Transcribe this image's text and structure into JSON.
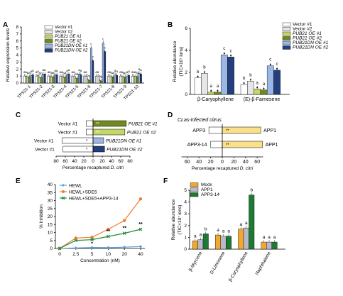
{
  "chart_data": [
    {
      "panel": "A",
      "type": "bar",
      "ylabel": "Relative expression levels",
      "ylim": [
        0,
        8
      ],
      "yticks": [
        0,
        1,
        2,
        3,
        4,
        5,
        6,
        7,
        8
      ],
      "categories": [
        "TPS21-1",
        "TPS21-2",
        "TPS21-3",
        "TPS21-4",
        "TPS21-5",
        "TPS21-6",
        "TPS21-7",
        "TPS21-8",
        "TPS21-9",
        "TPS21-10"
      ],
      "series": [
        {
          "name": "Vector #1",
          "color": "#ffffff",
          "values": [
            1.0,
            1.0,
            1.0,
            1.0,
            1.0,
            1.0,
            1.0,
            1.0,
            1.0,
            1.0
          ]
        },
        {
          "name": "Vector #2",
          "color": "#e6e6e6",
          "values": [
            1.0,
            1.1,
            1.0,
            1.0,
            1.0,
            1.0,
            1.0,
            1.0,
            1.0,
            1.0
          ]
        },
        {
          "name": "PUB21 OE #1",
          "color": "#c4d86a",
          "values": [
            0.9,
            0.8,
            0.9,
            0.8,
            0.7,
            0.5,
            0.4,
            0.9,
            0.9,
            1.0
          ]
        },
        {
          "name": "PUB21 OE #2",
          "color": "#6f8b1e",
          "values": [
            0.9,
            0.8,
            0.9,
            0.9,
            0.7,
            0.4,
            0.3,
            0.9,
            0.8,
            0.9
          ]
        },
        {
          "name": "PUB21DN OE #1",
          "color": "#9ab7e6",
          "values": [
            1.1,
            1.3,
            1.2,
            1.2,
            1.3,
            5.0,
            5.7,
            1.2,
            1.0,
            1.4
          ]
        },
        {
          "name": "PUB21DN OE #2",
          "color": "#243f7e",
          "values": [
            1.2,
            1.3,
            1.2,
            1.3,
            1.2,
            3.2,
            4.5,
            1.1,
            1.1,
            1.3
          ]
        }
      ],
      "annotations": [
        "a",
        "b",
        "c"
      ]
    },
    {
      "panel": "B",
      "type": "bar",
      "ylabel": "Relative abundance",
      "ylabel_unit": "(TIC×10⁷ ions)",
      "ylim": [
        0,
        6
      ],
      "yticks": [
        0,
        2,
        4,
        6
      ],
      "categories": [
        "β-Caryophyllene",
        "(E)-β-Farnesene"
      ],
      "series": [
        {
          "name": "Vector #1",
          "values": [
            1.5,
            0.9
          ]
        },
        {
          "name": "Vector #2",
          "values": [
            1.9,
            1.2
          ]
        },
        {
          "name": "PUB21 OE #1",
          "values": [
            0.2,
            0.5
          ]
        },
        {
          "name": "PUB21 OE #2",
          "values": [
            0.2,
            0.4
          ]
        },
        {
          "name": "PUB21DN OE #1",
          "values": [
            3.6,
            2.6
          ]
        },
        {
          "name": "PUB21DN OE #2",
          "values": [
            3.4,
            2.2
          ]
        }
      ],
      "letters": [
        [
          "b",
          "b",
          "a",
          "a",
          "c",
          "c"
        ],
        [
          "b",
          "b",
          "a",
          "a",
          "c",
          "c"
        ]
      ]
    },
    {
      "panel": "C",
      "type": "bar",
      "xlabel": "Percentage recaptured D. citri",
      "xlim": [
        -80,
        80
      ],
      "xticks": [
        80,
        60,
        40,
        20,
        0,
        20,
        40,
        60,
        80
      ],
      "rows": [
        {
          "left": "Vector #1",
          "right": "PUB21 OE #1",
          "left_value": 15,
          "right_value": 72,
          "sig": "**",
          "color": "#6f8b1e"
        },
        {
          "left": "Vector #1",
          "right": "PUB21 OE #2",
          "left_value": 15,
          "right_value": 69,
          "sig": "**",
          "color": "#c4d86a"
        },
        {
          "left": "Vector #1",
          "right": "PUB21DN OE #1",
          "left_value": 67,
          "right_value": 23,
          "sig": "*",
          "color": "#9ab7e6"
        },
        {
          "left": "Vector #1",
          "right": "PUB21DN OE #2",
          "left_value": 65,
          "right_value": 25,
          "sig": "*",
          "color": "#243f7e"
        }
      ]
    },
    {
      "panel": "D",
      "type": "bar",
      "title": "CLas-infected citrus",
      "xlabel": "Percentage recaptured D. citri",
      "xlim": [
        -80,
        80
      ],
      "xticks": [
        60,
        40,
        20,
        0,
        20,
        40,
        60
      ],
      "rows": [
        {
          "left": "APP3",
          "right": "APP1",
          "left_value": 23,
          "right_value": 66,
          "sig": "**"
        },
        {
          "left": "APP3-14",
          "right": "APP1",
          "left_value": 20,
          "right_value": 69,
          "sig": "**"
        }
      ]
    },
    {
      "panel": "E",
      "type": "line",
      "ylabel": "% Inhibition",
      "xlabel": "Concentration (nM)",
      "x": [
        0,
        2.5,
        5,
        10,
        20,
        40
      ],
      "ylim": [
        0,
        40
      ],
      "yticks": [
        0,
        5,
        10,
        15,
        20,
        25,
        30,
        35,
        40
      ],
      "series": [
        {
          "name": "HEWL",
          "color": "#5b9bd5",
          "values": [
            0,
            0.3,
            0.6,
            0.5,
            0.8,
            1.2
          ]
        },
        {
          "name": "HEWL+SDE5",
          "color": "#ed7d31",
          "values": [
            0,
            6.5,
            7.0,
            12.0,
            17.5,
            31.0
          ]
        },
        {
          "name": "HEWL+SDE5+APP3-14",
          "color": "#1e8c3a",
          "values": [
            0,
            5.0,
            5.5,
            7.5,
            9.5,
            12.0
          ]
        }
      ],
      "sig_labels": [
        "*",
        "**",
        "**",
        "**"
      ]
    },
    {
      "panel": "F",
      "type": "bar",
      "ylabel": "Relative abundance",
      "ylabel_unit": "(TIC×10⁷ ions)",
      "ylim": [
        0,
        5
      ],
      "yticks": [
        0,
        1,
        2,
        3,
        4,
        5
      ],
      "categories": [
        "β-Myrcene",
        "D-Limonene",
        "β-Caryophyllene",
        "Naphthalene"
      ],
      "series": [
        {
          "name": "Mock",
          "color": "#f0a830",
          "values": [
            0.7,
            1.2,
            1.7,
            0.6
          ]
        },
        {
          "name": "APP1",
          "color": "#b9b9c9",
          "values": [
            0.8,
            1.1,
            1.8,
            0.6
          ]
        },
        {
          "name": "APP3-14",
          "color": "#1e7a32",
          "values": [
            1.3,
            1.1,
            4.6,
            0.6
          ]
        }
      ],
      "letters": [
        [
          "a",
          "a",
          "b"
        ],
        [
          "a",
          "a",
          "a"
        ],
        [
          "a",
          "a",
          "b"
        ],
        [
          "a",
          "a",
          "a"
        ]
      ]
    }
  ]
}
